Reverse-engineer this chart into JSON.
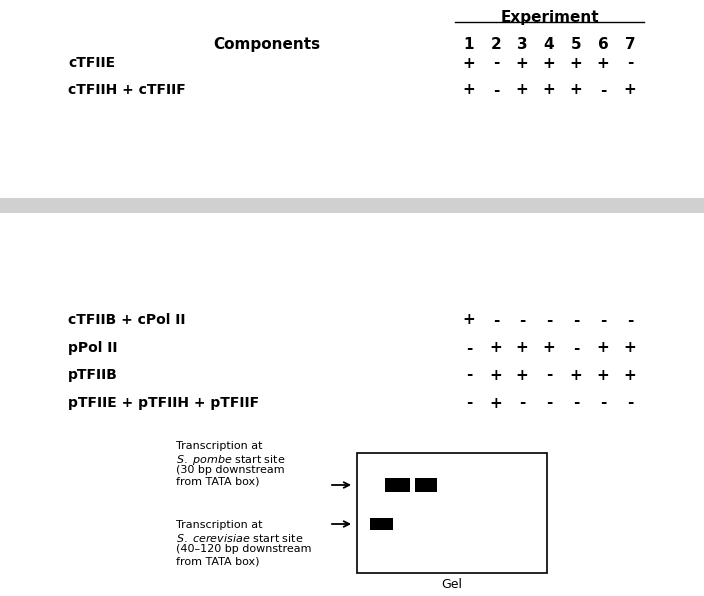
{
  "title": "Experiment",
  "experiments": [
    "1",
    "2",
    "3",
    "4",
    "5",
    "6",
    "7"
  ],
  "top_components": [
    {
      "label": "cTFIIE",
      "signs": [
        "+",
        "-",
        "+",
        "+",
        "+",
        "+",
        "-"
      ]
    },
    {
      "label": "cTFIIH + cTFIIF",
      "signs": [
        "+",
        "-",
        "+",
        "+",
        "+",
        "-",
        "+"
      ]
    }
  ],
  "bottom_components": [
    {
      "label": "cTFIIB + cPol II",
      "signs": [
        "+",
        "-",
        "-",
        "-",
        "-",
        "-",
        "-"
      ]
    },
    {
      "label": "pPol II",
      "signs": [
        "-",
        "+",
        "+",
        "+",
        "-",
        "+",
        "+"
      ]
    },
    {
      "label": "pTFIIB",
      "signs": [
        "-",
        "+",
        "+",
        "-",
        "+",
        "+",
        "+"
      ]
    },
    {
      "label": "pTFIIE + pTFIIH + pTFIIF",
      "signs": [
        "-",
        "+",
        "-",
        "-",
        "-",
        "-",
        "-"
      ]
    }
  ],
  "divider_color": "#d0d0d0",
  "black": "#000000",
  "white": "#ffffff",
  "sign_fontsize": 11,
  "label_fontsize": 10,
  "header_fontsize": 11,
  "ann_fontsize": 8
}
